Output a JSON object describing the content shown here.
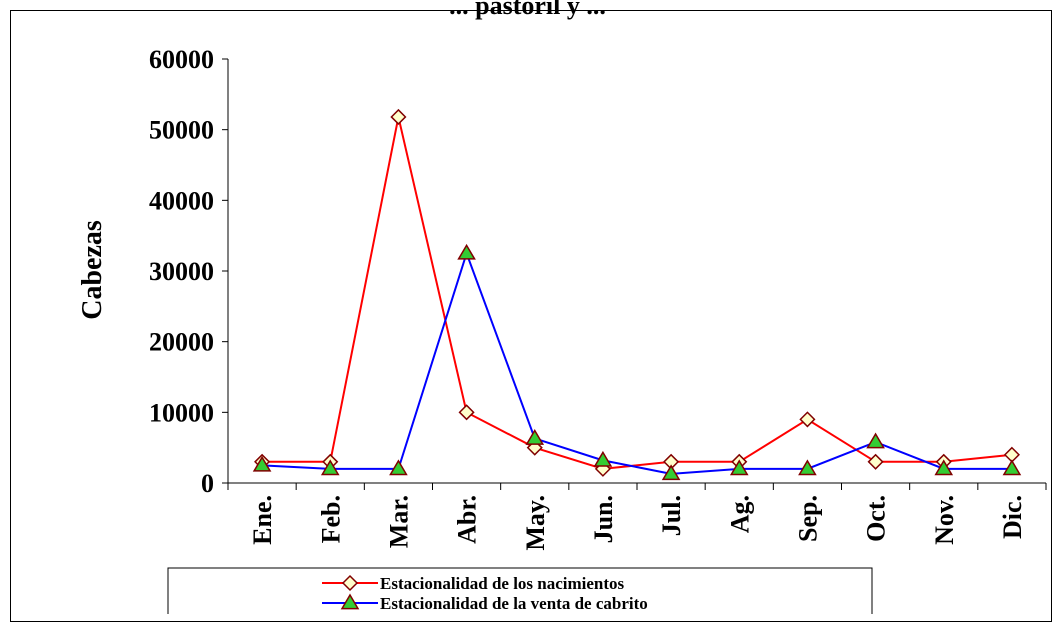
{
  "chart_data": {
    "type": "line",
    "title": "... pastoril y ...",
    "ylabel": "Cabezas",
    "xlabel": "",
    "ylim": [
      0,
      60000
    ],
    "yticks": [
      0,
      10000,
      20000,
      30000,
      40000,
      50000,
      60000
    ],
    "categories": [
      "Ene.",
      "Feb.",
      "Mar.",
      "Abr.",
      "May.",
      "Jun.",
      "Jul.",
      "Ag.",
      "Sep.",
      "Oct.",
      "Nov.",
      "Dic."
    ],
    "grid": false,
    "legend_position": "bottom",
    "series": [
      {
        "name": "Estacionalidad de los nacimientos",
        "line_color": "#ff0000",
        "marker": "diamond",
        "marker_fill": "#ffffcc",
        "marker_stroke": "#800000",
        "values": [
          3000,
          3000,
          51800,
          10000,
          5000,
          2000,
          3000,
          3000,
          9000,
          3000,
          3000,
          4000
        ]
      },
      {
        "name": "Estacionalidad de la venta de cabrito",
        "line_color": "#0000ff",
        "marker": "triangle",
        "marker_fill": "#33cc33",
        "marker_stroke": "#800000",
        "values": [
          2500,
          2000,
          2000,
          32500,
          6300,
          3200,
          1300,
          2000,
          2000,
          5800,
          2000,
          2000
        ]
      }
    ]
  }
}
